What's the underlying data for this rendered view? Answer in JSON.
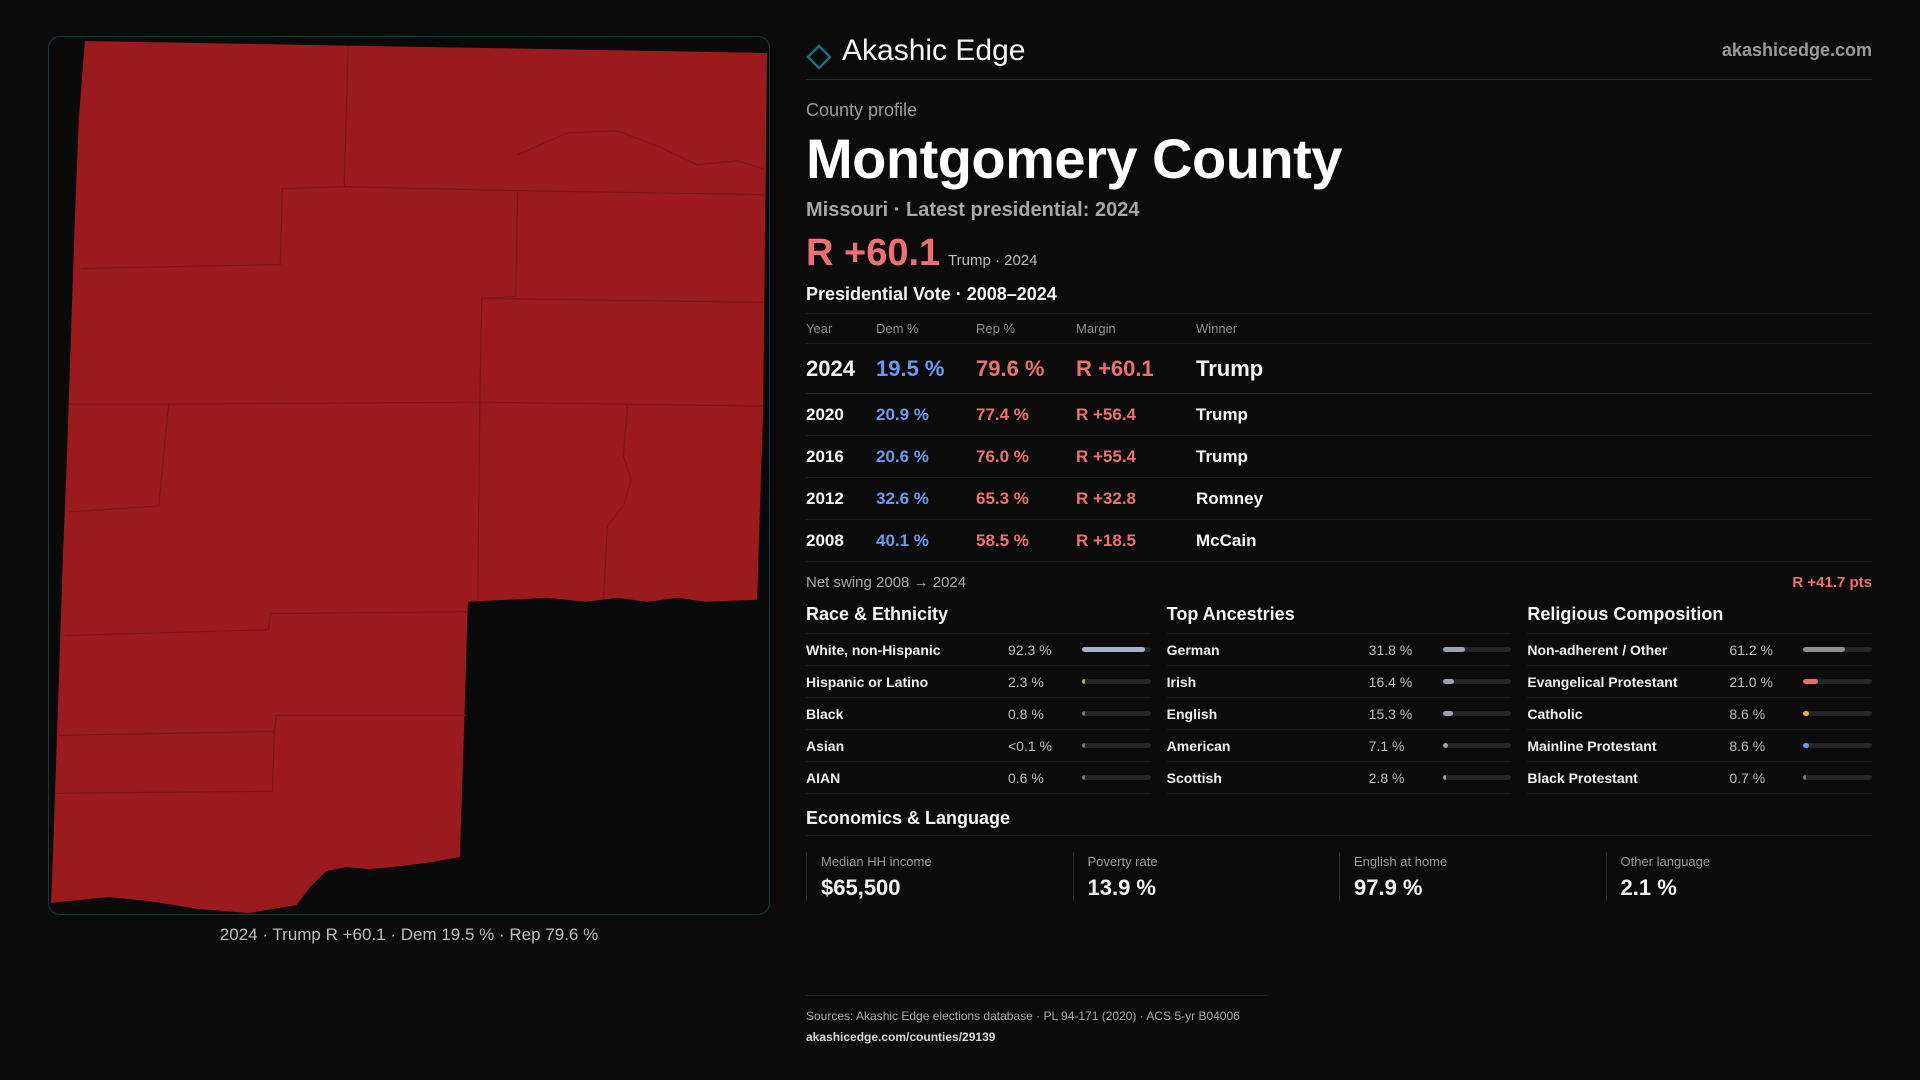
{
  "map": {
    "caption": "2024 · Trump R +60.1 · Dem 19.5 % · Rep 79.6 %",
    "fill_color": "#9a1a1e",
    "border_color": "#173a3f"
  },
  "brand": {
    "name": "Akashic Edge",
    "url": "akashicedge.com",
    "icon": "diamond-icon"
  },
  "profile": {
    "eyebrow": "County profile",
    "title": "Montgomery County",
    "subtitle": "Missouri · Latest presidential: 2024",
    "headline_margin": "R +60.1",
    "headline_note": "Trump · 2024"
  },
  "vote": {
    "title": "Presidential Vote · 2008–2024",
    "headers": {
      "year": "Year",
      "dem": "Dem %",
      "rep": "Rep %",
      "margin": "Margin",
      "winner": "Winner"
    },
    "rows": [
      {
        "year": "2024",
        "dem": "19.5 %",
        "rep": "79.6 %",
        "margin": "R +60.1",
        "winner": "Trump"
      },
      {
        "year": "2020",
        "dem": "20.9 %",
        "rep": "77.4 %",
        "margin": "R +56.4",
        "winner": "Trump"
      },
      {
        "year": "2016",
        "dem": "20.6 %",
        "rep": "76.0 %",
        "margin": "R +55.4",
        "winner": "Trump"
      },
      {
        "year": "2012",
        "dem": "32.6 %",
        "rep": "65.3 %",
        "margin": "R +32.8",
        "winner": "Romney"
      },
      {
        "year": "2008",
        "dem": "40.1 %",
        "rep": "58.5 %",
        "margin": "R +18.5",
        "winner": "McCain"
      }
    ],
    "swing_label": "Net swing 2008 → 2024",
    "swing_value": "R +41.7 pts"
  },
  "race": {
    "title": "Race & Ethnicity",
    "rows": [
      {
        "label": "White, non-Hispanic",
        "value": "92.3 %",
        "share": 92.3,
        "color": "#a7b3c4"
      },
      {
        "label": "Hispanic or Latino",
        "value": "2.3 %",
        "share": 2.3,
        "color": "#9acd4a"
      },
      {
        "label": "Black",
        "value": "0.8 %",
        "share": 0.8,
        "color": "#7a7a7a"
      },
      {
        "label": "Asian",
        "value": "<0.1 %",
        "share": 0.1,
        "color": "#7a7a7a"
      },
      {
        "label": "AIAN",
        "value": "0.6 %",
        "share": 0.6,
        "color": "#7a7a7a"
      }
    ]
  },
  "ancestry": {
    "title": "Top Ancestries",
    "rows": [
      {
        "label": "German",
        "value": "31.8 %",
        "share": 31.8,
        "color": "#9aa3ae"
      },
      {
        "label": "Irish",
        "value": "16.4 %",
        "share": 16.4,
        "color": "#9aa3ae"
      },
      {
        "label": "English",
        "value": "15.3 %",
        "share": 15.3,
        "color": "#9aa3ae"
      },
      {
        "label": "American",
        "value": "7.1 %",
        "share": 7.1,
        "color": "#9aa3ae"
      },
      {
        "label": "Scottish",
        "value": "2.8 %",
        "share": 2.8,
        "color": "#9aa3ae"
      }
    ]
  },
  "religion": {
    "title": "Religious Composition",
    "rows": [
      {
        "label": "Non-adherent / Other",
        "value": "61.2 %",
        "share": 61.2,
        "color": "#8f8f8f"
      },
      {
        "label": "Evangelical Protestant",
        "value": "21.0 %",
        "share": 21.0,
        "color": "#ef6a6a"
      },
      {
        "label": "Catholic",
        "value": "8.6 %",
        "share": 8.6,
        "color": "#e8b33a"
      },
      {
        "label": "Mainline Protestant",
        "value": "8.6 %",
        "share": 8.6,
        "color": "#5fa0e8"
      },
      {
        "label": "Black Protestant",
        "value": "0.7 %",
        "share": 0.7,
        "color": "#7a7a7a"
      }
    ]
  },
  "economics": {
    "title": "Economics & Language",
    "cards": [
      {
        "label": "Median HH income",
        "value": "$65,500"
      },
      {
        "label": "Poverty rate",
        "value": "13.9 %"
      },
      {
        "label": "English at home",
        "value": "97.9 %"
      },
      {
        "label": "Other language",
        "value": "2.1 %"
      }
    ]
  },
  "sources": {
    "text": "Sources: Akashic Edge elections database · PL 94-171 (2020) · ACS 5-yr B04006",
    "url": "akashicedge.com/counties/29139"
  },
  "colors": {
    "accent": "#1f6f78",
    "republican": "#ef7070",
    "democrat": "#6b9bf0",
    "background": "#0b0b0b"
  }
}
